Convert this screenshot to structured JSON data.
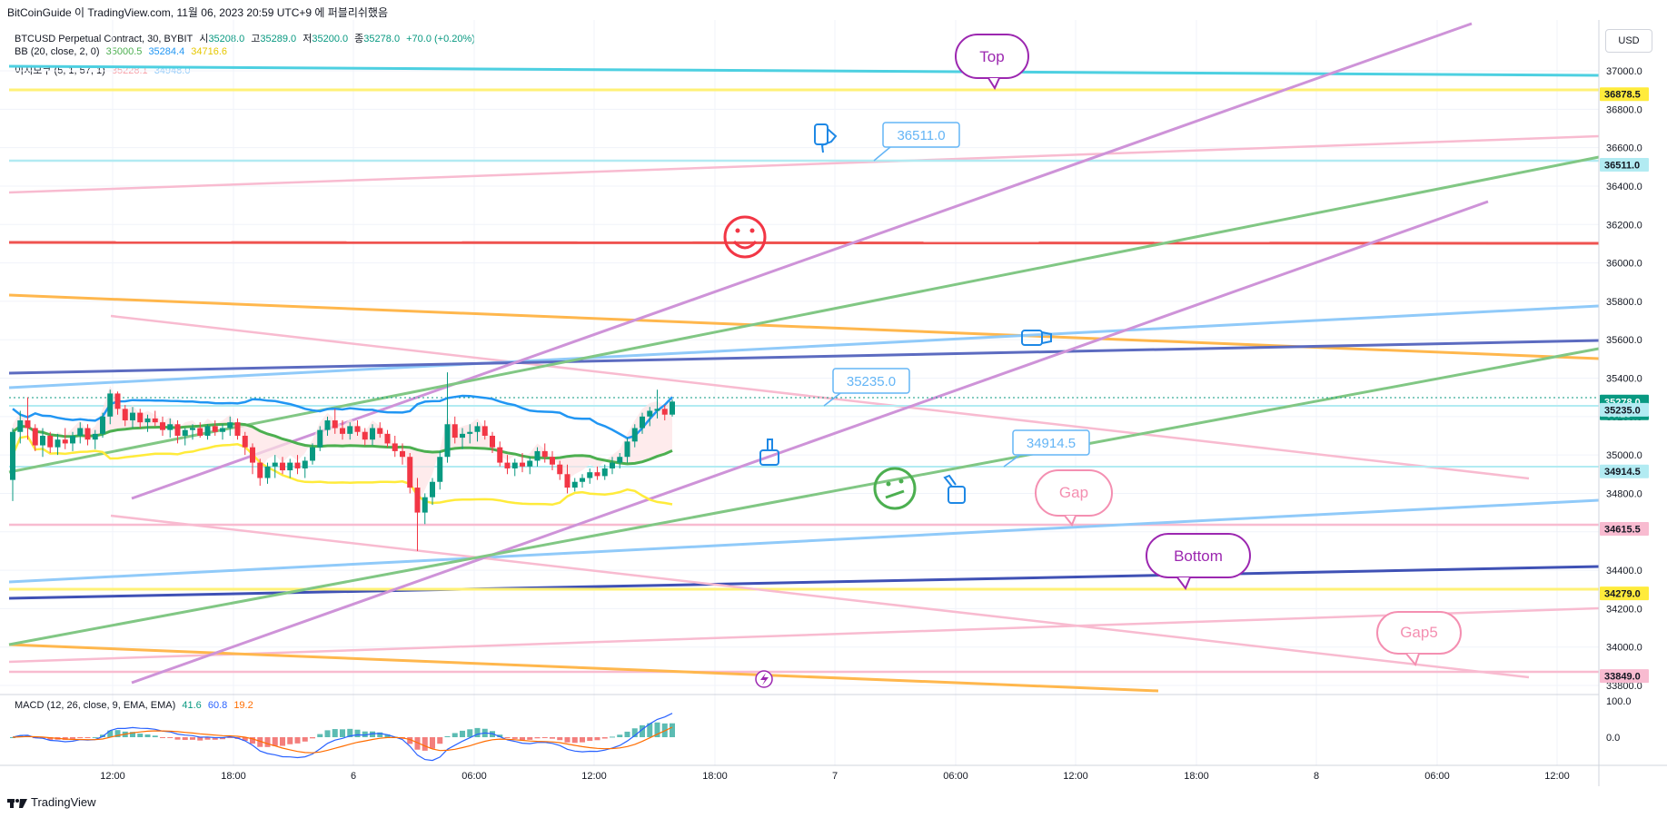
{
  "header": {
    "attribution": "BitCoinGuide 이 TradingView.com, 11월 06, 2023 20:59 UTC+9 에 퍼블리쉬했음"
  },
  "legend": {
    "symbol": "BTCUSD Perpetual Contract, 30, BYBIT",
    "o_label": "시",
    "o": "35208.0",
    "h_label": "고",
    "h": "35289.0",
    "l_label": "저",
    "l": "35200.0",
    "c_label": "종",
    "c": "35278.0",
    "chg": "+70.0 (+0.20%)",
    "bb_label": "BB (20, close, 2, 0)",
    "bb_basis": "35000.5",
    "bb_upper": "35284.4",
    "bb_lower": "34716.6",
    "ichi_label": "이치모쿠 (5, 1, 57, 1)",
    "ichi_a": "35228.1",
    "ichi_b": "34948.0"
  },
  "macd_legend": {
    "label": "MACD (12, 26, close, 9, EMA, EMA)",
    "v1": "41.6",
    "v2": "60.8",
    "v3": "19.2"
  },
  "currency": "USD",
  "footer": {
    "brand": "TradingView"
  },
  "colors": {
    "up": "#089981",
    "down": "#f23645",
    "bb_basis": "#4caf50",
    "bb_upper": "#2196f3",
    "bb_lower": "#ffeb3b",
    "cyan": "#4dd0e1",
    "purple": "#ce93d8",
    "green": "#81c784",
    "blue": "#90caf9",
    "navy": "#3f51b5",
    "orange": "#ffb74d",
    "pink": "#f8bbd0",
    "red": "#ef5350",
    "yellow": "#ffeb3b"
  },
  "chart_data": {
    "type": "candlestick",
    "symbol": "BTCUSD Perpetual Contract",
    "interval": "30",
    "exchange": "BYBIT",
    "ylim": [
      33750,
      37250
    ],
    "y_ticks": [
      37000,
      36800,
      36600,
      36400,
      36200,
      36000,
      35800,
      35600,
      35400,
      35200,
      35000,
      34800,
      34600,
      34400,
      34200,
      34000,
      33800
    ],
    "y_tick_labels": [
      "37000.0",
      "36800.0",
      "36600.0",
      "36400.0",
      "36200.0",
      "36000.0",
      "35800.0",
      "35600.0",
      "35400.0",
      "35200.0",
      "35000.0",
      "34800.0",
      "34600.0",
      "34400.0",
      "34200.0",
      "34000.0",
      "33800.0"
    ],
    "x_tick_labels": [
      "12:00",
      "18:00",
      "6",
      "06:00",
      "12:00",
      "18:00",
      "7",
      "06:00",
      "12:00",
      "18:00",
      "8",
      "06:00",
      "12:00"
    ],
    "price_badges": [
      {
        "value": "36878.5",
        "color": "#ffeb3b",
        "text_color": "#131722"
      },
      {
        "value": "36511.0",
        "color": "#b2ebf2",
        "text_color": "#131722"
      },
      {
        "value": "35278.0",
        "color": "#089981",
        "text_color": "#ffffff",
        "sub": "00:23"
      },
      {
        "value": "35235.0",
        "color": "#b2ebf2",
        "text_color": "#131722"
      },
      {
        "value": "34914.5",
        "color": "#b2ebf2",
        "text_color": "#131722"
      },
      {
        "value": "34615.5",
        "color": "#f8bbd0",
        "text_color": "#131722"
      },
      {
        "value": "34279.0",
        "color": "#ffeb3b",
        "text_color": "#131722"
      },
      {
        "value": "33849.0",
        "color": "#f8bbd0",
        "text_color": "#131722"
      }
    ],
    "callouts": [
      {
        "text": "Top",
        "color": "#9c27b0"
      },
      {
        "text": "36511.0",
        "color": "#64b5f6"
      },
      {
        "text": "35235.0",
        "color": "#64b5f6"
      },
      {
        "text": "34914.5",
        "color": "#64b5f6"
      },
      {
        "text": "Gap",
        "color": "#f48fb1"
      },
      {
        "text": "Bottom",
        "color": "#9c27b0"
      },
      {
        "text": "Gap5",
        "color": "#f48fb1"
      }
    ],
    "candles_ohlc": [
      [
        34870,
        35140,
        34760,
        35120
      ],
      [
        35120,
        35230,
        35060,
        35180
      ],
      [
        35180,
        35300,
        35080,
        35140
      ],
      [
        35140,
        35160,
        35020,
        35050
      ],
      [
        35050,
        35140,
        34990,
        35100
      ],
      [
        35100,
        35120,
        35010,
        35040
      ],
      [
        35040,
        35110,
        35000,
        35080
      ],
      [
        35080,
        35140,
        35030,
        35060
      ],
      [
        35060,
        35120,
        35020,
        35100
      ],
      [
        35100,
        35170,
        35060,
        35140
      ],
      [
        35140,
        35160,
        35050,
        35080
      ],
      [
        35080,
        35130,
        35030,
        35110
      ],
      [
        35110,
        35220,
        35090,
        35200
      ],
      [
        35200,
        35340,
        35160,
        35320
      ],
      [
        35320,
        35330,
        35210,
        35240
      ],
      [
        35240,
        35260,
        35150,
        35180
      ],
      [
        35180,
        35250,
        35140,
        35220
      ],
      [
        35220,
        35240,
        35140,
        35170
      ],
      [
        35170,
        35210,
        35120,
        35190
      ],
      [
        35190,
        35230,
        35150,
        35170
      ],
      [
        35170,
        35200,
        35100,
        35130
      ],
      [
        35130,
        35190,
        35090,
        35160
      ],
      [
        35160,
        35180,
        35060,
        35100
      ],
      [
        35100,
        35140,
        35050,
        35130
      ],
      [
        35130,
        35160,
        35080,
        35140
      ],
      [
        35140,
        35170,
        35090,
        35100
      ],
      [
        35100,
        35160,
        35080,
        35150
      ],
      [
        35150,
        35180,
        35100,
        35120
      ],
      [
        35120,
        35160,
        35080,
        35140
      ],
      [
        35140,
        35200,
        35100,
        35170
      ],
      [
        35170,
        35190,
        35080,
        35100
      ],
      [
        35100,
        35120,
        35000,
        35040
      ],
      [
        35040,
        35060,
        34900,
        34960
      ],
      [
        34960,
        34980,
        34840,
        34880
      ],
      [
        34880,
        34960,
        34850,
        34940
      ],
      [
        34940,
        35000,
        34880,
        34960
      ],
      [
        34960,
        34990,
        34900,
        34920
      ],
      [
        34920,
        34980,
        34880,
        34960
      ],
      [
        34960,
        35000,
        34900,
        34930
      ],
      [
        34930,
        34990,
        34880,
        34970
      ],
      [
        34970,
        35060,
        34950,
        35040
      ],
      [
        35040,
        35150,
        35020,
        35130
      ],
      [
        35130,
        35200,
        35100,
        35180
      ],
      [
        35180,
        35240,
        35110,
        35140
      ],
      [
        35140,
        35180,
        35080,
        35110
      ],
      [
        35110,
        35170,
        35080,
        35150
      ],
      [
        35150,
        35180,
        35100,
        35120
      ],
      [
        35120,
        35140,
        35050,
        35080
      ],
      [
        35080,
        35160,
        35050,
        35140
      ],
      [
        35140,
        35170,
        35090,
        35110
      ],
      [
        35110,
        35130,
        35040,
        35060
      ],
      [
        35060,
        35100,
        34990,
        35020
      ],
      [
        35020,
        35060,
        34950,
        34990
      ],
      [
        34990,
        35010,
        34800,
        34830
      ],
      [
        34830,
        34880,
        34500,
        34700
      ],
      [
        34700,
        34800,
        34640,
        34780
      ],
      [
        34780,
        34880,
        34740,
        34860
      ],
      [
        34860,
        35020,
        34820,
        34990
      ],
      [
        34990,
        35430,
        34960,
        35160
      ],
      [
        35160,
        35200,
        35060,
        35090
      ],
      [
        35090,
        35140,
        35030,
        35110
      ],
      [
        35110,
        35160,
        35060,
        35120
      ],
      [
        35120,
        35170,
        35070,
        35150
      ],
      [
        35150,
        35180,
        35080,
        35100
      ],
      [
        35100,
        35120,
        35010,
        35040
      ],
      [
        35040,
        35070,
        34940,
        34960
      ],
      [
        34960,
        35000,
        34900,
        34930
      ],
      [
        34930,
        34980,
        34890,
        34960
      ],
      [
        34960,
        35010,
        34910,
        34940
      ],
      [
        34940,
        34990,
        34900,
        34970
      ],
      [
        34970,
        35040,
        34940,
        35020
      ],
      [
        35020,
        35060,
        34960,
        34990
      ],
      [
        34990,
        35020,
        34920,
        34950
      ],
      [
        34950,
        34970,
        34870,
        34900
      ],
      [
        34900,
        34950,
        34800,
        34830
      ],
      [
        34830,
        34880,
        34810,
        34860
      ],
      [
        34860,
        34900,
        34830,
        34880
      ],
      [
        34880,
        34930,
        34850,
        34910
      ],
      [
        34910,
        34940,
        34870,
        34890
      ],
      [
        34890,
        34950,
        34870,
        34930
      ],
      [
        34930,
        34990,
        34900,
        34960
      ],
      [
        34960,
        35010,
        34930,
        34990
      ],
      [
        34990,
        35090,
        34960,
        35070
      ],
      [
        35070,
        35160,
        35040,
        35140
      ],
      [
        35140,
        35220,
        35110,
        35200
      ],
      [
        35200,
        35250,
        35150,
        35230
      ],
      [
        35230,
        35340,
        35190,
        35240
      ],
      [
        35240,
        35260,
        35180,
        35210
      ],
      [
        35210,
        35290,
        35200,
        35278
      ]
    ],
    "macd_ticks": [
      "100.0",
      "0.0"
    ],
    "macd_values": {
      "macd": 41.6,
      "signal": 60.8,
      "histogram": 19.2
    }
  }
}
